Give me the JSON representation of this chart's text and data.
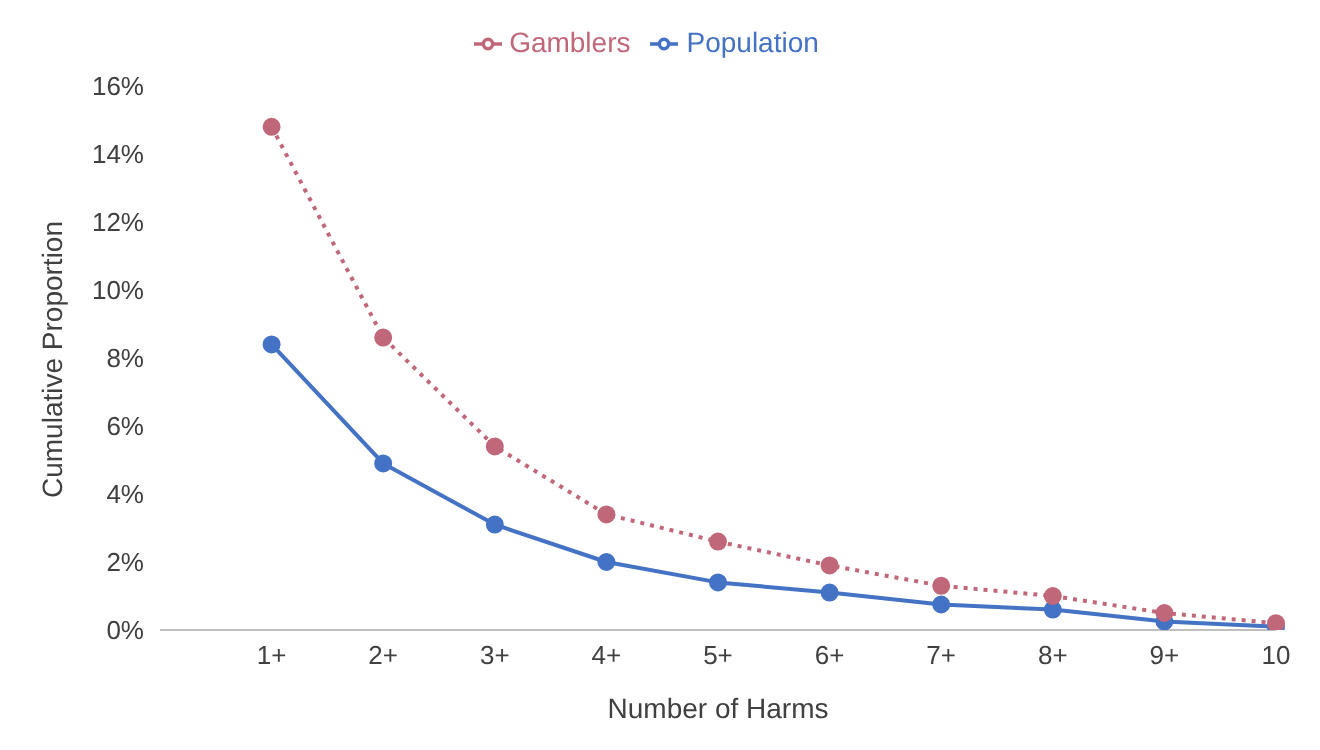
{
  "chart_data": {
    "type": "line",
    "xlabel": "Number of Harms",
    "ylabel": "Cumulative Proportion",
    "categories": [
      null,
      "1+",
      "2+",
      "3+",
      "4+",
      "5+",
      "6+",
      "7+",
      "8+",
      "9+",
      "10"
    ],
    "series": [
      {
        "name": "Gamblers",
        "color": "#c0677a",
        "line_style": "dotted",
        "values": [
          null,
          14.8,
          8.6,
          5.4,
          3.4,
          2.6,
          1.9,
          1.3,
          1.0,
          0.5,
          0.2
        ]
      },
      {
        "name": "Population",
        "color": "#4472c4",
        "line_style": "solid",
        "values": [
          null,
          8.4,
          4.9,
          3.1,
          2.0,
          1.4,
          1.1,
          0.75,
          0.6,
          0.25,
          0.1
        ]
      }
    ],
    "ylim": [
      0,
      16
    ],
    "yticks": [
      {
        "value": 0,
        "label": "0%"
      },
      {
        "value": 2,
        "label": "2%"
      },
      {
        "value": 4,
        "label": "4%"
      },
      {
        "value": 6,
        "label": "6%"
      },
      {
        "value": 8,
        "label": "8%"
      },
      {
        "value": 10,
        "label": "10%"
      },
      {
        "value": 12,
        "label": "12%"
      },
      {
        "value": 14,
        "label": "14%"
      },
      {
        "value": 16,
        "label": "16%"
      }
    ],
    "marker": "circle",
    "legend": "top",
    "grid": false
  }
}
